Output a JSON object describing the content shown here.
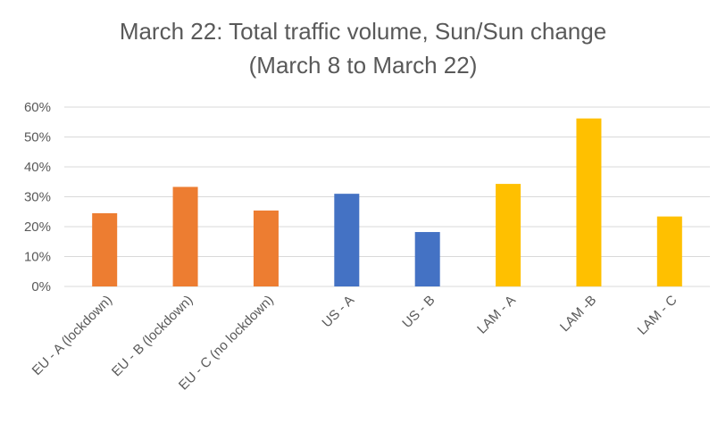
{
  "chart_data": {
    "type": "bar",
    "title": "March 22: Total traffic volume, Sun/Sun change",
    "subtitle": "(March 8 to March 22)",
    "categories": [
      "EU - A (lockdown)",
      "EU - B (lockdown)",
      "EU - C (no lockdown)",
      "US - A",
      "US - B",
      "LAM - A",
      "LAM -B",
      "LAM - C"
    ],
    "values": [
      24.5,
      33.3,
      25.4,
      31.0,
      18.2,
      34.3,
      56.2,
      23.4
    ],
    "colors": [
      "#ED7D31",
      "#ED7D31",
      "#ED7D31",
      "#4472C4",
      "#4472C4",
      "#FFC000",
      "#FFC000",
      "#FFC000"
    ],
    "ylim": [
      0,
      60
    ],
    "yticks": [
      "0%",
      "10%",
      "20%",
      "30%",
      "40%",
      "50%",
      "60%"
    ],
    "grid": true,
    "xlabel": "",
    "ylabel": ""
  }
}
